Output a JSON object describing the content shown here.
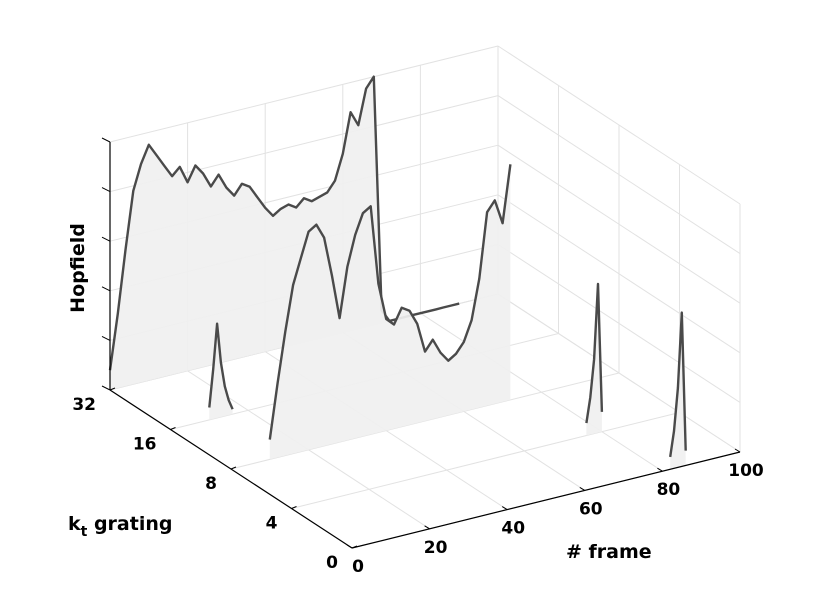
{
  "chart_data": {
    "type": "3d-waterfall-line",
    "title": "",
    "xlabel": "# frame",
    "ylabel_prefix": "k",
    "ylabel_sub": "t",
    "ylabel_suffix": " grating",
    "zlabel": "Hopfield",
    "xlim": [
      0,
      100
    ],
    "zlim": [
      0,
      1
    ],
    "x_ticks": [
      "0",
      "20",
      "40",
      "60",
      "80",
      "100"
    ],
    "y_ticks": [
      "0",
      "4",
      "8",
      "16",
      "32"
    ],
    "grid": true,
    "series": [
      {
        "k": "32",
        "x": [
          0,
          2,
          4,
          6,
          8,
          10,
          12,
          14,
          16,
          18,
          20,
          22,
          24,
          26,
          28,
          30,
          32,
          34,
          36,
          38,
          40,
          42,
          44,
          46,
          48,
          50,
          52,
          54,
          56,
          58,
          60,
          62,
          64,
          66,
          68,
          70,
          72,
          74,
          76,
          78,
          80,
          82,
          84,
          86,
          88,
          90
        ],
        "z": [
          0.08,
          0.3,
          0.55,
          0.78,
          0.88,
          0.95,
          0.9,
          0.85,
          0.8,
          0.83,
          0.76,
          0.82,
          0.78,
          0.72,
          0.76,
          0.7,
          0.66,
          0.7,
          0.68,
          0.63,
          0.58,
          0.54,
          0.56,
          0.57,
          0.55,
          0.58,
          0.56,
          0.57,
          0.58,
          0.62,
          0.72,
          0.88,
          0.82,
          0.96,
          1.0,
          0.05,
          0.0,
          0.0,
          0.0,
          0.0,
          0.0,
          0.0,
          0.0,
          0.0,
          0.0,
          0.0
        ]
      },
      {
        "k": "16",
        "x": [
          10,
          11,
          12,
          13,
          14,
          15,
          16
        ],
        "z": [
          0.05,
          0.2,
          0.38,
          0.22,
          0.12,
          0.06,
          0.02
        ]
      },
      {
        "k": "8",
        "x": [
          10,
          12,
          14,
          16,
          18,
          20,
          22,
          24,
          26,
          28,
          30,
          32,
          34,
          36,
          38,
          40,
          42,
          44,
          46,
          48,
          50,
          52,
          54,
          56,
          58,
          60,
          62,
          64,
          66,
          68,
          70,
          72
        ],
        "z": [
          0.08,
          0.3,
          0.5,
          0.68,
          0.78,
          0.88,
          0.9,
          0.84,
          0.68,
          0.5,
          0.7,
          0.82,
          0.9,
          0.92,
          0.6,
          0.45,
          0.42,
          0.48,
          0.46,
          0.4,
          0.28,
          0.32,
          0.26,
          0.22,
          0.24,
          0.28,
          0.36,
          0.52,
          0.78,
          0.82,
          0.72,
          0.95
        ]
      },
      {
        "k": "4",
        "x": [
          76,
          77,
          78,
          79,
          80
        ],
        "z": [
          0.05,
          0.15,
          0.3,
          0.6,
          0.08
        ]
      },
      {
        "k": "0",
        "x": [
          82,
          83,
          84,
          85,
          86
        ],
        "z": [
          0.05,
          0.15,
          0.32,
          0.62,
          0.06
        ]
      }
    ]
  }
}
